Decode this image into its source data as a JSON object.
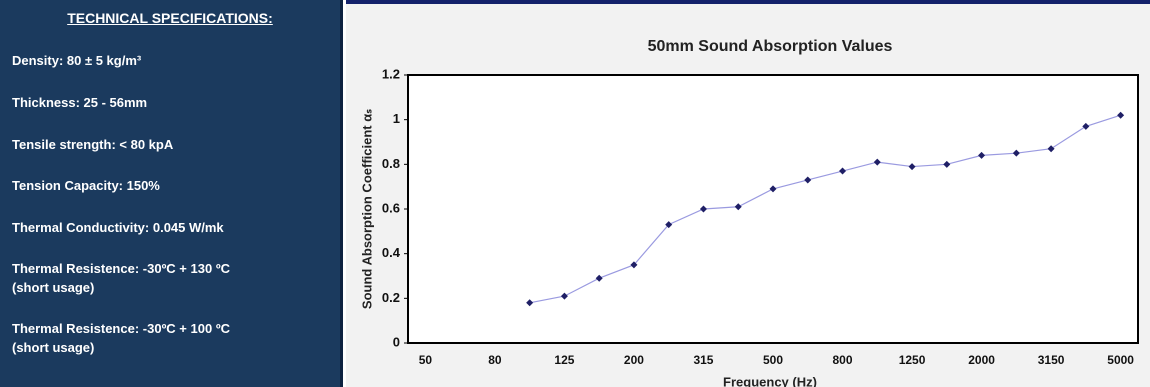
{
  "specs": {
    "title": "TECHNICAL SPECIFICATIONS:",
    "items": [
      {
        "lines": [
          "Density: 80 ± 5 kg/m³"
        ]
      },
      {
        "lines": [
          "Thickness: 25 - 56mm"
        ]
      },
      {
        "lines": [
          "Tensile strength: < 80 kpA"
        ]
      },
      {
        "lines": [
          "Tension Capacity:  150%"
        ]
      },
      {
        "lines": [
          "Thermal Conductivity: 0.045 W/mk"
        ]
      },
      {
        "lines": [
          "Thermal Resistence: -30ºC + 130 ºC",
          "(short usage)"
        ]
      },
      {
        "lines": [
          "Thermal Resistence: -30ºC + 100 ºC",
          "(short usage)"
        ]
      }
    ]
  },
  "chart_data": {
    "type": "line",
    "title": "50mm Sound Absorption Values",
    "x_label": "Frequency (Hz)",
    "y_label": "Sound Absorption Coefficient αₛ",
    "categories": [
      "50",
      null,
      "80",
      null,
      "125",
      null,
      "200",
      null,
      "315",
      null,
      "500",
      null,
      "800",
      null,
      "1250",
      null,
      "2000",
      null,
      "3150",
      null,
      "5000"
    ],
    "series": [
      {
        "name": "50mm",
        "color": "#1f1f66",
        "line_color": "#9a9ae0",
        "values": [
          null,
          null,
          null,
          0.18,
          0.21,
          0.29,
          0.35,
          0.53,
          0.6,
          0.61,
          0.69,
          0.73,
          0.77,
          0.81,
          0.79,
          0.8,
          0.84,
          0.85,
          0.87,
          0.97,
          1.02
        ]
      }
    ],
    "ylim": [
      0,
      1.2
    ],
    "yticks": [
      0,
      0.2,
      0.4,
      0.6,
      0.8,
      1,
      1.2
    ],
    "grid": false,
    "legend": false
  }
}
